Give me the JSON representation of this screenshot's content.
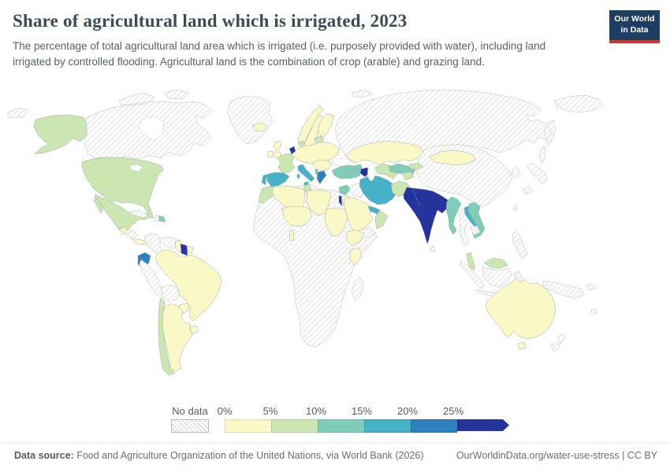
{
  "header": {
    "title": "Share of agricultural land which is irrigated, 2023",
    "subtitle": "The percentage of total agricultural land area which is irrigated (i.e. purposely provided with water), including land irrigated by controlled flooding. Agricultural land is the combination of crop (arable) and grazing land."
  },
  "logo": {
    "line1": "Our World",
    "line2": "in Data",
    "bg_color": "#1d3d63",
    "accent_color": "#d8352a"
  },
  "legend": {
    "no_data_label": "No data",
    "ticks": [
      "0%",
      "5%",
      "10%",
      "15%",
      "20%",
      "25%"
    ],
    "colors": [
      "#fbf8c7",
      "#cbe6b1",
      "#7fccb9",
      "#46b2c8",
      "#3080bd",
      "#25339c"
    ]
  },
  "footer": {
    "source_label": "Data source:",
    "source_text": " Food and Agriculture Organization of the United Nations, via World Bank (2026)",
    "right_text": "OurWorldinData.org/water-use-stress | CC BY"
  },
  "chart_data": {
    "type": "choropleth",
    "title": "Share of agricultural land which is irrigated, 2023",
    "unit": "%",
    "legend_position": "bottom",
    "bins": [
      {
        "range": "0-5%",
        "color": "#fbf8c7"
      },
      {
        "range": "5-10%",
        "color": "#cbe6b1"
      },
      {
        "range": "10-15%",
        "color": "#7fccb9"
      },
      {
        "range": "15-20%",
        "color": "#46b2c8"
      },
      {
        "range": "20-25%",
        "color": "#3080bd"
      },
      {
        "range": "25%+",
        "color": "#25339c"
      },
      {
        "range": "No data",
        "color": "hatched-gray"
      }
    ],
    "countries_by_bin": {
      "0-5%": [
        "Brazil",
        "Argentina",
        "Paraguay",
        "Uruguay",
        "Guyana",
        "Australia",
        "United Kingdom",
        "Ireland",
        "Iceland",
        "Germany",
        "Poland",
        "Ukraine",
        "Sweden",
        "Norway",
        "Finland",
        "Romania",
        "Bulgaria",
        "Kazakhstan",
        "Mongolia",
        "Saudi Arabia",
        "Jordan",
        "Algeria",
        "Libya",
        "Niger",
        "Sudan",
        "Ethiopia",
        "Kenya",
        "Benin",
        "Guatemala",
        "Costa Rica",
        "Panama"
      ],
      "5-10%": [
        "United States",
        "Mexico",
        "Chile",
        "France",
        "Denmark",
        "Baltic states",
        "Morocco",
        "Tunisia",
        "Afghanistan",
        "Turkmenistan",
        "Kyrgyzstan",
        "Tajikistan",
        "Oman",
        "Malaysia"
      ],
      "10-15%": [
        "Turkey",
        "Uzbekistan",
        "Myanmar",
        "Syria",
        "Vietnam",
        "Dominican Republic",
        "Georgia",
        "Albania"
      ],
      "15-20%": [
        "Spain",
        "Portugal",
        "Italy",
        "Iran",
        "Laos",
        "United Arab Emirates"
      ],
      "20-25%": [
        "Ecuador",
        "Greece"
      ],
      "25%+": [
        "India",
        "Pakistan",
        "Bangladesh",
        "Nepal",
        "Suriname",
        "Israel",
        "Azerbaijan",
        "Netherlands"
      ],
      "No data": [
        "Canada",
        "Greenland",
        "Russia",
        "China",
        "Japan",
        "North Korea",
        "South Korea",
        "Indonesia",
        "Philippines",
        "Papua New Guinea",
        "New Zealand",
        "Thailand",
        "Cambodia",
        "Sri Lanka",
        "Iraq",
        "Yemen",
        "Egypt",
        "Chad",
        "Most of Sub-Saharan Africa",
        "Madagascar",
        "South Africa",
        "Colombia",
        "Venezuela",
        "Peru",
        "Bolivia",
        "Cuba",
        "Haiti",
        "Honduras",
        "Nicaragua"
      ]
    }
  },
  "map": {
    "countries": {
      "canada": "no-data",
      "greenland": "no-data",
      "iceland": 0,
      "usa": 1,
      "mexico": 1,
      "guatemala": 0,
      "honduras-nicaragua": "no-data",
      "costa-rica-panama": 0,
      "cuba": "no-data",
      "haiti": "no-data",
      "dominican-republic": 2,
      "colombia": "no-data",
      "venezuela": "no-data",
      "guyana": 0,
      "suriname": 5,
      "french-guiana": 0,
      "ecuador": 4,
      "peru": "no-data",
      "bolivia": "no-data",
      "brazil": 0,
      "paraguay": 0,
      "uruguay": 0,
      "argentina": 0,
      "chile": 1,
      "uk": 0,
      "ireland": 0,
      "norway": 0,
      "sweden": 0,
      "finland": 0,
      "denmark": 1,
      "baltics": 1,
      "netherlands": 5,
      "central-europe": 0,
      "france": 1,
      "spain": 3,
      "portugal": 3,
      "italy": 3,
      "balkans": 0,
      "greece": 4,
      "albania": 2,
      "russia": "no-data",
      "svalbard": "no-data",
      "chukotka": "no-data",
      "turkey": 2,
      "georgia-armenia": 2,
      "azerbaijan": 5,
      "syria": 2,
      "iraq": "no-data",
      "jordan": 0,
      "israel": 5,
      "saudi-arabia": 0,
      "yemen": "no-data",
      "oman": 1,
      "uae": 3,
      "iran": 3,
      "kazakhstan": 0,
      "turkmenistan": 1,
      "uzbekistan": 2,
      "kyrgyzstan": 1,
      "tajikistan": 1,
      "afghanistan": 1,
      "south-asia": 5,
      "sri-lanka": "no-data",
      "china": "no-data",
      "mongolia": 0,
      "korea": "no-data",
      "japan": "no-data",
      "taiwan": "no-data",
      "myanmar": 2,
      "thailand": "no-data",
      "laos": 3,
      "vietnam": 2,
      "cambodia": "no-data",
      "malaysia": 1,
      "indonesia": "no-data",
      "philippines": "no-data",
      "papua-new-guinea": "no-data",
      "pacific-islands": "no-data",
      "australia": 0,
      "new-zealand": "no-data",
      "africa-subsaharan": "no-data",
      "madagascar": "no-data",
      "morocco": 1,
      "algeria": 0,
      "tunisia": 1,
      "libya": 0,
      "niger": 0,
      "benin": 0,
      "sudan": 0,
      "ethiopia": 0,
      "kenya": 0
    }
  }
}
